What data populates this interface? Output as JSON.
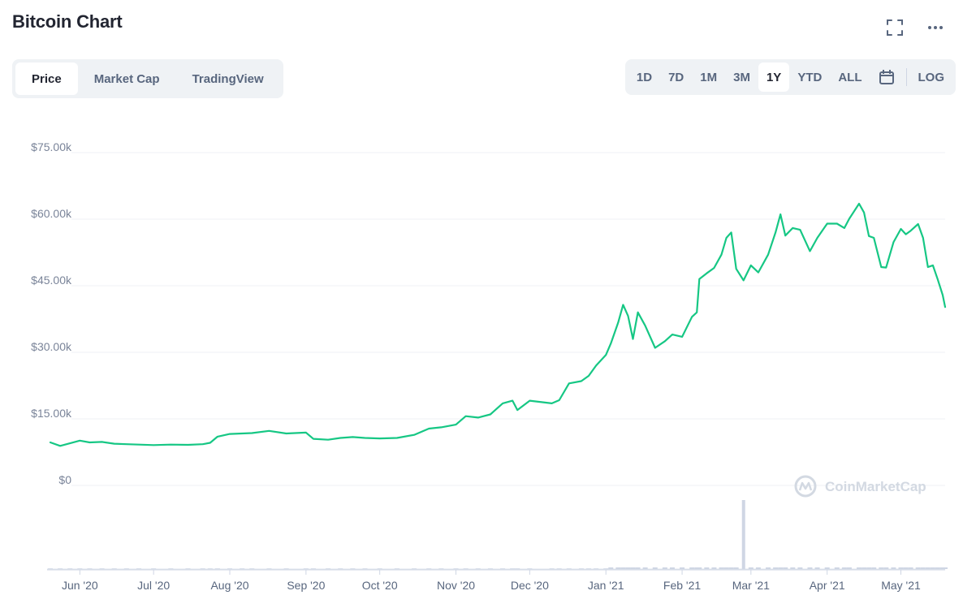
{
  "header": {
    "title": "Bitcoin Chart",
    "fullscreen_icon": "expand-icon",
    "more_icon": "more-dots-icon"
  },
  "tabs": [
    {
      "label": "Price",
      "active": true
    },
    {
      "label": "Market Cap",
      "active": false
    },
    {
      "label": "TradingView",
      "active": false
    }
  ],
  "ranges": [
    {
      "label": "1D",
      "active": false
    },
    {
      "label": "7D",
      "active": false
    },
    {
      "label": "1M",
      "active": false
    },
    {
      "label": "3M",
      "active": false
    },
    {
      "label": "1Y",
      "active": true
    },
    {
      "label": "YTD",
      "active": false
    },
    {
      "label": "ALL",
      "active": false
    }
  ],
  "calendar_icon": "calendar-icon",
  "log_label": "LOG",
  "watermark": "CoinMarketCap",
  "colors": {
    "line": "#16c784",
    "volume": "#cfd6e4",
    "grid": "#eff2f5",
    "text": "#222531",
    "muted": "#58667e"
  },
  "chart_data": {
    "type": "line",
    "title": "Bitcoin Chart",
    "series": [
      {
        "name": "Price"
      }
    ],
    "ylim": [
      0,
      75000
    ],
    "yticks": [
      "$75.00k",
      "$60.00k",
      "$45.00k",
      "$30.00k",
      "$15.00k",
      "$0"
    ],
    "ytick_values": [
      75000,
      60000,
      45000,
      30000,
      15000,
      0
    ],
    "xticks": [
      "Jun '20",
      "Jul '20",
      "Aug '20",
      "Sep '20",
      "Oct '20",
      "Nov '20",
      "Dec '20",
      "Jan '21",
      "Feb '21",
      "Mar '21",
      "Apr '21",
      "May '21"
    ],
    "xtick_dates": [
      "2020-06-01",
      "2020-07-01",
      "2020-08-01",
      "2020-09-01",
      "2020-10-01",
      "2020-11-01",
      "2020-12-01",
      "2021-01-01",
      "2021-02-01",
      "2021-03-01",
      "2021-04-01",
      "2021-05-01"
    ],
    "x_range": [
      "2020-05-20",
      "2021-05-19"
    ],
    "price": [
      [
        "2020-05-20",
        9700
      ],
      [
        "2020-05-24",
        8900
      ],
      [
        "2020-05-28",
        9500
      ],
      [
        "2020-06-01",
        10100
      ],
      [
        "2020-06-05",
        9700
      ],
      [
        "2020-06-10",
        9800
      ],
      [
        "2020-06-15",
        9400
      ],
      [
        "2020-06-20",
        9300
      ],
      [
        "2020-06-25",
        9200
      ],
      [
        "2020-07-01",
        9100
      ],
      [
        "2020-07-08",
        9200
      ],
      [
        "2020-07-15",
        9150
      ],
      [
        "2020-07-21",
        9300
      ],
      [
        "2020-07-24",
        9600
      ],
      [
        "2020-07-27",
        11000
      ],
      [
        "2020-08-01",
        11600
      ],
      [
        "2020-08-06",
        11700
      ],
      [
        "2020-08-10",
        11800
      ],
      [
        "2020-08-17",
        12300
      ],
      [
        "2020-08-24",
        11700
      ],
      [
        "2020-09-01",
        11900
      ],
      [
        "2020-09-04",
        10500
      ],
      [
        "2020-09-10",
        10300
      ],
      [
        "2020-09-15",
        10700
      ],
      [
        "2020-09-20",
        10900
      ],
      [
        "2020-09-25",
        10700
      ],
      [
        "2020-10-01",
        10600
      ],
      [
        "2020-10-08",
        10700
      ],
      [
        "2020-10-15",
        11400
      ],
      [
        "2020-10-21",
        12800
      ],
      [
        "2020-10-26",
        13100
      ],
      [
        "2020-11-01",
        13700
      ],
      [
        "2020-11-05",
        15600
      ],
      [
        "2020-11-10",
        15300
      ],
      [
        "2020-11-15",
        16000
      ],
      [
        "2020-11-20",
        18500
      ],
      [
        "2020-11-24",
        19100
      ],
      [
        "2020-11-26",
        17000
      ],
      [
        "2020-12-01",
        19100
      ],
      [
        "2020-12-10",
        18500
      ],
      [
        "2020-12-13",
        19200
      ],
      [
        "2020-12-17",
        23000
      ],
      [
        "2020-12-22",
        23500
      ],
      [
        "2020-12-25",
        24700
      ],
      [
        "2020-12-28",
        27000
      ],
      [
        "2021-01-01",
        29400
      ],
      [
        "2021-01-03",
        32000
      ],
      [
        "2021-01-06",
        36700
      ],
      [
        "2021-01-08",
        40700
      ],
      [
        "2021-01-10",
        38200
      ],
      [
        "2021-01-12",
        33000
      ],
      [
        "2021-01-14",
        39000
      ],
      [
        "2021-01-17",
        36000
      ],
      [
        "2021-01-21",
        31000
      ],
      [
        "2021-01-25",
        32500
      ],
      [
        "2021-01-28",
        34000
      ],
      [
        "2021-02-01",
        33500
      ],
      [
        "2021-02-05",
        38000
      ],
      [
        "2021-02-07",
        39000
      ],
      [
        "2021-02-08",
        46500
      ],
      [
        "2021-02-11",
        47800
      ],
      [
        "2021-02-14",
        49000
      ],
      [
        "2021-02-17",
        52000
      ],
      [
        "2021-02-19",
        55800
      ],
      [
        "2021-02-21",
        57000
      ],
      [
        "2021-02-23",
        48800
      ],
      [
        "2021-02-26",
        46200
      ],
      [
        "2021-03-01",
        49600
      ],
      [
        "2021-03-04",
        48000
      ],
      [
        "2021-03-08",
        52000
      ],
      [
        "2021-03-11",
        57000
      ],
      [
        "2021-03-13",
        61100
      ],
      [
        "2021-03-15",
        56300
      ],
      [
        "2021-03-18",
        58000
      ],
      [
        "2021-03-21",
        57600
      ],
      [
        "2021-03-25",
        52800
      ],
      [
        "2021-03-28",
        55800
      ],
      [
        "2021-04-01",
        59000
      ],
      [
        "2021-04-05",
        59000
      ],
      [
        "2021-04-08",
        58000
      ],
      [
        "2021-04-10",
        60100
      ],
      [
        "2021-04-14",
        63500
      ],
      [
        "2021-04-16",
        61500
      ],
      [
        "2021-04-18",
        56200
      ],
      [
        "2021-04-20",
        55800
      ],
      [
        "2021-04-23",
        49200
      ],
      [
        "2021-04-25",
        49100
      ],
      [
        "2021-04-28",
        54800
      ],
      [
        "2021-05-01",
        57800
      ],
      [
        "2021-05-03",
        56600
      ],
      [
        "2021-05-05",
        57400
      ],
      [
        "2021-05-08",
        58900
      ],
      [
        "2021-05-10",
        55800
      ],
      [
        "2021-05-12",
        49200
      ],
      [
        "2021-05-14",
        49600
      ],
      [
        "2021-05-16",
        46400
      ],
      [
        "2021-05-18",
        42900
      ],
      [
        "2021-05-19",
        40200
      ]
    ],
    "volume_spike_date": "2021-02-26"
  }
}
